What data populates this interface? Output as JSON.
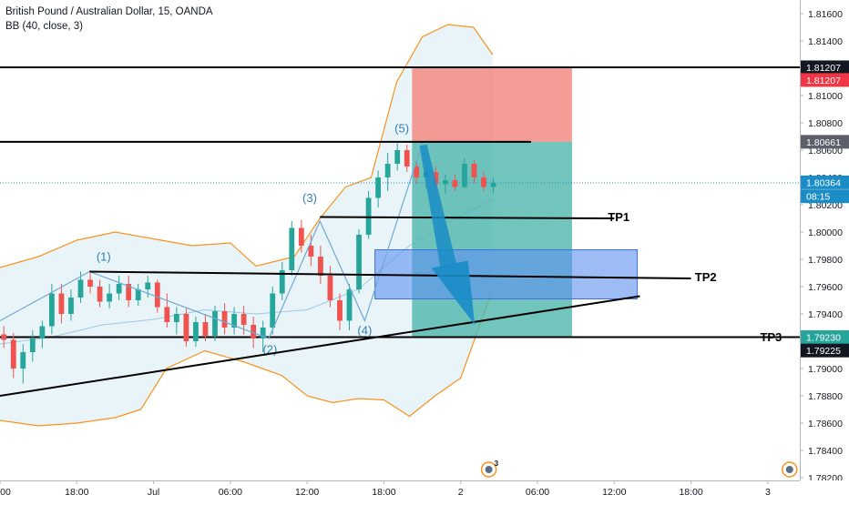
{
  "legend": {
    "title": "British Pound / Australian Dollar, 15, OANDA",
    "indicator": "BB (40, close, 3)"
  },
  "colors": {
    "bb_band": "#f7931e",
    "bb_fill": "#e8f4f8",
    "bb_basis": "#9fc9e8",
    "candle_up": "#26a69a",
    "candle_down": "#ef5350",
    "wave": "#6fa8d6",
    "sl_zone": "#f28b82",
    "tp_zone": "#4db6ac",
    "demand_zone": "#5b8ff0",
    "arrow": "#1a8dc6",
    "level_line": "#000000",
    "price_marker": "#1a8dc6",
    "price_marker_red": "#f23645"
  },
  "chart_data": {
    "type": "candlestick",
    "instrument": "British Pound / Australian Dollar",
    "timeframe": "15",
    "source": "OANDA",
    "y_range": [
      1.7818,
      1.817
    ],
    "y_ticks": [
      "1.81600",
      "1.81400",
      "1.81200",
      "1.81000",
      "1.80800",
      "1.80600",
      "1.80400",
      "1.80200",
      "1.80000",
      "1.79800",
      "1.79600",
      "1.79400",
      "1.79200",
      "1.79000",
      "1.78800",
      "1.78600",
      "1.78400",
      "1.78200"
    ],
    "x_ticks": [
      {
        "label": "00",
        "x": 0
      },
      {
        "label": "18:00",
        "x": 6
      },
      {
        "label": "Jul",
        "x": 12
      },
      {
        "label": "06:00",
        "x": 18
      },
      {
        "label": "12:00",
        "x": 24
      },
      {
        "label": "18:00",
        "x": 30
      },
      {
        "label": "2",
        "x": 36
      },
      {
        "label": "06:00",
        "x": 42
      },
      {
        "label": "12:00",
        "x": 48
      },
      {
        "label": "18:00",
        "x": 54
      },
      {
        "label": "3",
        "x": 60
      }
    ],
    "x_range": [
      0,
      62.5
    ],
    "price_labels": [
      {
        "value": "1.81207",
        "price": 1.81207,
        "style": "black"
      },
      {
        "value": "1.81207",
        "price": 1.81114,
        "style": "red"
      },
      {
        "value": "1.80661",
        "price": 1.80661,
        "style": "gray"
      },
      {
        "value": "1.80364",
        "price": 1.80364,
        "style": "blue"
      },
      {
        "value": "08:15",
        "price": 1.80262,
        "style": "blue"
      },
      {
        "value": "1.79230",
        "price": 1.7923,
        "style": "teal"
      },
      {
        "value": "1.79225",
        "price": 1.79132,
        "style": "black"
      }
    ],
    "levels": [
      {
        "price": 1.81207,
        "x1": 0,
        "x2": 62.5
      },
      {
        "price": 1.80661,
        "x1": 0,
        "x2": 41.5
      },
      {
        "price": 1.7923,
        "x1": 0,
        "x2": 62.5
      }
    ],
    "trend_lines": [
      {
        "x1": 25,
        "y1": 1.8011,
        "x2": 48,
        "y2": 1.801,
        "label": "TP1"
      },
      {
        "x1": 7,
        "y1": 1.7971,
        "x2": 54,
        "y2": 1.7966,
        "label": "TP2"
      },
      {
        "x1": 0,
        "y1": 1.788,
        "x2": 50,
        "y2": 1.7953,
        "label": ""
      }
    ],
    "tp_labels": [
      {
        "text": "TP1",
        "x": 47.5,
        "price": 1.801
      },
      {
        "text": "TP2",
        "x": 54.3,
        "price": 1.7966
      },
      {
        "text": "TP3",
        "x": 59.4,
        "price": 1.7922
      }
    ],
    "zones": [
      {
        "type": "stop",
        "x1": 32.2,
        "x2": 44.7,
        "top": 1.81207,
        "bottom": 1.80661
      },
      {
        "type": "target",
        "x1": 32.2,
        "x2": 44.7,
        "top": 1.80661,
        "bottom": 1.7923
      },
      {
        "type": "demand",
        "x1": 29.3,
        "x2": 49.8,
        "top": 1.7987,
        "bottom": 1.7951
      }
    ],
    "wave_path": [
      [
        0,
        1.7935
      ],
      [
        7,
        1.7971
      ],
      [
        21,
        1.7922
      ],
      [
        25,
        1.8008
      ],
      [
        28.5,
        1.7935
      ],
      [
        33,
        1.8065
      ]
    ],
    "wave_labels": [
      {
        "text": "(1)",
        "x": 8.1,
        "price": 1.7979
      },
      {
        "text": "(2)",
        "x": 21.1,
        "price": 1.7911
      },
      {
        "text": "(3)",
        "x": 24.2,
        "price": 1.8022
      },
      {
        "text": "(4)",
        "x": 28.5,
        "price": 1.7925
      },
      {
        "text": "(5)",
        "x": 31.4,
        "price": 1.8073
      }
    ],
    "arrow": {
      "from": [
        33,
        1.8063
      ],
      "via": [
        35,
        1.7975
      ],
      "to": [
        37.1,
        1.7932
      ]
    },
    "bb_upper": [
      [
        0,
        1.7974
      ],
      [
        3,
        1.7982
      ],
      [
        6,
        1.7994
      ],
      [
        9,
        1.8
      ],
      [
        12,
        1.7995
      ],
      [
        15,
        1.799
      ],
      [
        18,
        1.7992
      ],
      [
        20,
        1.7975
      ],
      [
        23,
        1.7982
      ],
      [
        25,
        1.801
      ],
      [
        27,
        1.8033
      ],
      [
        29,
        1.804
      ],
      [
        31,
        1.811
      ],
      [
        33,
        1.8143
      ],
      [
        35,
        1.8152
      ],
      [
        37,
        1.815
      ],
      [
        38.5,
        1.813
      ]
    ],
    "bb_lower": [
      [
        0,
        1.7862
      ],
      [
        3,
        1.7858
      ],
      [
        6,
        1.786
      ],
      [
        9,
        1.7864
      ],
      [
        11,
        1.787
      ],
      [
        13,
        1.79
      ],
      [
        16,
        1.7913
      ],
      [
        19,
        1.7905
      ],
      [
        22,
        1.7895
      ],
      [
        24,
        1.788
      ],
      [
        26,
        1.7875
      ],
      [
        28,
        1.7878
      ],
      [
        30,
        1.7877
      ],
      [
        32,
        1.7865
      ],
      [
        34,
        1.788
      ],
      [
        36,
        1.7893
      ],
      [
        38.5,
        1.7958
      ]
    ],
    "bb_basis": [
      [
        0,
        1.7918
      ],
      [
        4,
        1.7923
      ],
      [
        8,
        1.7932
      ],
      [
        12,
        1.7936
      ],
      [
        16,
        1.7943
      ],
      [
        20,
        1.794
      ],
      [
        24,
        1.7943
      ],
      [
        28,
        1.7958
      ],
      [
        32,
        1.799
      ],
      [
        36,
        1.8012
      ],
      [
        38.5,
        1.8024
      ]
    ],
    "candles": [
      [
        1.7925,
        1.7931,
        1.7915,
        1.7921
      ],
      [
        1.7921,
        1.7926,
        1.7893,
        1.79
      ],
      [
        1.79,
        1.7918,
        1.7889,
        1.7912
      ],
      [
        1.7912,
        1.7928,
        1.7905,
        1.7922
      ],
      [
        1.7922,
        1.7935,
        1.7915,
        1.7931
      ],
      [
        1.7931,
        1.7962,
        1.7925,
        1.7955
      ],
      [
        1.7955,
        1.7962,
        1.7933,
        1.794
      ],
      [
        1.794,
        1.7958,
        1.7935,
        1.7952
      ],
      [
        1.7952,
        1.7971,
        1.7948,
        1.7965
      ],
      [
        1.7965,
        1.797,
        1.7955,
        1.796
      ],
      [
        1.796,
        1.7965,
        1.7945,
        1.7949
      ],
      [
        1.7949,
        1.7962,
        1.7944,
        1.7955
      ],
      [
        1.7955,
        1.7968,
        1.795,
        1.7962
      ],
      [
        1.7962,
        1.7968,
        1.7945,
        1.795
      ],
      [
        1.795,
        1.7962,
        1.7946,
        1.7958
      ],
      [
        1.7958,
        1.7968,
        1.7952,
        1.7963
      ],
      [
        1.7963,
        1.7965,
        1.7941,
        1.7945
      ],
      [
        1.7945,
        1.7955,
        1.793,
        1.7934
      ],
      [
        1.7934,
        1.7945,
        1.7925,
        1.794
      ],
      [
        1.794,
        1.7944,
        1.7916,
        1.792
      ],
      [
        1.792,
        1.7938,
        1.7916,
        1.7934
      ],
      [
        1.7934,
        1.794,
        1.792,
        1.7924
      ],
      [
        1.7924,
        1.7946,
        1.792,
        1.7942
      ],
      [
        1.7942,
        1.7948,
        1.7925,
        1.793
      ],
      [
        1.793,
        1.7945,
        1.7925,
        1.794
      ],
      [
        1.794,
        1.7946,
        1.7925,
        1.7932
      ],
      [
        1.7932,
        1.7938,
        1.7915,
        1.7922
      ],
      [
        1.7922,
        1.7935,
        1.7912,
        1.793
      ],
      [
        1.793,
        1.796,
        1.7925,
        1.7955
      ],
      [
        1.7955,
        1.7978,
        1.795,
        1.7972
      ],
      [
        1.7972,
        1.8008,
        1.7968,
        1.8003
      ],
      [
        1.8003,
        1.8009,
        1.7985,
        1.799
      ],
      [
        1.799,
        1.7998,
        1.7975,
        1.7982
      ],
      [
        1.7982,
        1.799,
        1.7962,
        1.7968
      ],
      [
        1.7968,
        1.7975,
        1.7945,
        1.795
      ],
      [
        1.795,
        1.7955,
        1.7928,
        1.7935
      ],
      [
        1.7935,
        1.7962,
        1.7928,
        1.7958
      ],
      [
        1.7958,
        1.8002,
        1.7955,
        1.7998
      ],
      [
        1.7998,
        1.803,
        1.7995,
        1.8025
      ],
      [
        1.8025,
        1.8045,
        1.8018,
        1.804
      ],
      [
        1.804,
        1.8058,
        1.803,
        1.805
      ],
      [
        1.805,
        1.8065,
        1.8045,
        1.806
      ],
      [
        1.806,
        1.8064,
        1.8044,
        1.8048
      ],
      [
        1.8048,
        1.8052,
        1.8036,
        1.804
      ],
      [
        1.804,
        1.8047,
        1.8032,
        1.8044
      ],
      [
        1.8044,
        1.8048,
        1.803,
        1.8035
      ],
      [
        1.8035,
        1.8042,
        1.8028,
        1.8038
      ],
      [
        1.8038,
        1.8042,
        1.803,
        1.8033
      ],
      [
        1.8033,
        1.8054,
        1.8032,
        1.805
      ],
      [
        1.805,
        1.8053,
        1.8036,
        1.804
      ],
      [
        1.804,
        1.8044,
        1.803,
        1.8033
      ],
      [
        1.8033,
        1.804,
        1.8028,
        1.8036
      ]
    ],
    "candle_x_start": 0.3,
    "candle_x_step": 0.75
  },
  "axis_badge": {
    "count": "3"
  }
}
